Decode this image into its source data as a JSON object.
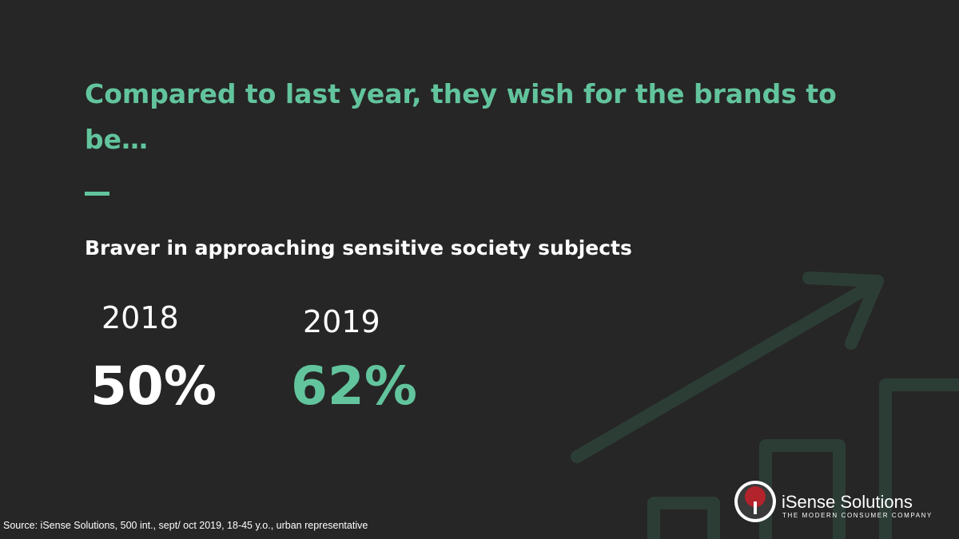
{
  "header": {
    "title_lines": [
      "Compared to last year, they wish for the brands to",
      "be…"
    ],
    "subtitle": "Braver in approaching sensitive society subjects"
  },
  "stats": [
    {
      "year": "2018",
      "value": "50%"
    },
    {
      "year": "2019",
      "value": "62%"
    }
  ],
  "logo": {
    "name": "iSense Solutions",
    "tagline": "THE MODERN CONSUMER COMPANY"
  },
  "footer": {
    "source": "Source: iSense Solutions, 500 int., sept/ oct 2019, 18-45 y.o., urban representative"
  }
}
